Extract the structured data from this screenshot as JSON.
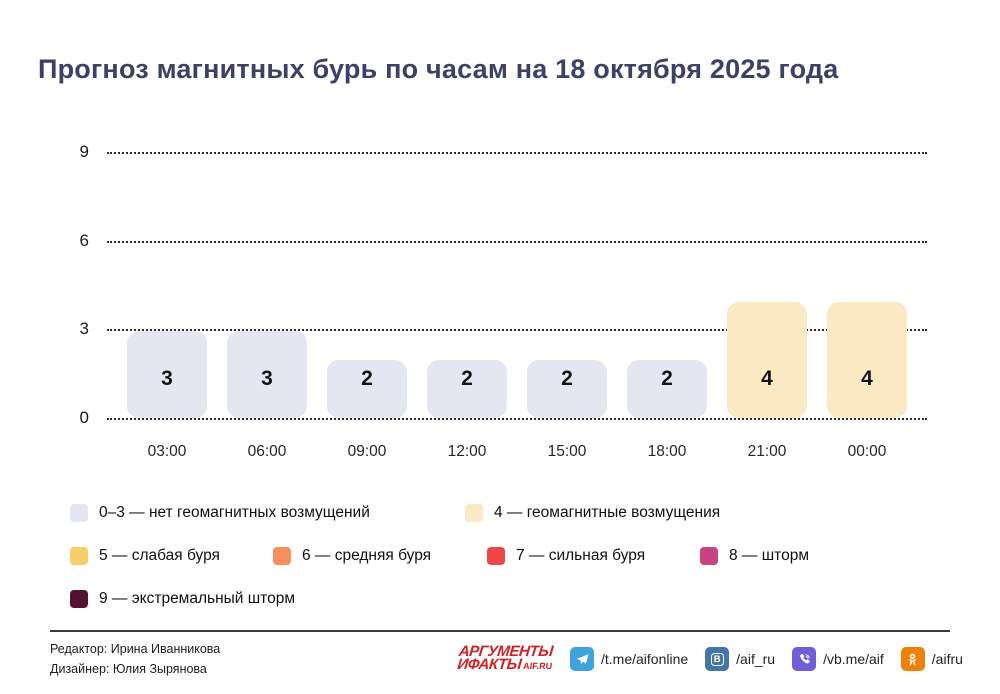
{
  "title": "Прогноз магнитных бурь по часам на 18 октября 2025 года",
  "chart_data": {
    "type": "bar",
    "categories": [
      "03:00",
      "06:00",
      "09:00",
      "12:00",
      "15:00",
      "18:00",
      "21:00",
      "00:00"
    ],
    "values": [
      3,
      3,
      2,
      2,
      2,
      2,
      4,
      4
    ],
    "title": "Прогноз магнитных бурь по часам на 18 октября 2025 года",
    "xlabel": "",
    "ylabel": "",
    "yticks": [
      "0",
      "3",
      "6",
      "9"
    ],
    "ylim": [
      0,
      9
    ],
    "grid": "horizontal-dotted",
    "bar_color_low": "#e4e7f1",
    "bar_color_high": "#fbe9c4",
    "legend_position": "bottom"
  },
  "legend": {
    "items": [
      {
        "color": "#e4e7f1",
        "label": "0–3 — нет геомагнитных возмущений"
      },
      {
        "color": "#fbe9c4",
        "label": "4 — геомагнитные возмущения"
      },
      {
        "color": "#f8ce68",
        "label": "5 — слабая буря"
      },
      {
        "color": "#f88e5e",
        "label": "6 — средняя буря"
      },
      {
        "color": "#ee4647",
        "label": "7 — сильная буря"
      },
      {
        "color": "#c64480",
        "label": "8 — шторм"
      },
      {
        "color": "#541231",
        "label": "9 — экстремальный шторм"
      }
    ]
  },
  "footer": {
    "credits": {
      "editor": "Редактор: Ирина Иванникова",
      "designer": "Дизайнер: Юлия Зырянова"
    },
    "brand": {
      "line1": "АРГУМЕНТЫ",
      "line2": "ИФАКТЫ",
      "suffix": "AIF.RU",
      "color": "#cf2027"
    },
    "social": [
      {
        "icon": "telegram-icon",
        "color": "#3ea2dc",
        "label": "/t.me/aifonline"
      },
      {
        "icon": "vk-icon",
        "color": "#4376a6",
        "label": "/aif_ru"
      },
      {
        "icon": "viber-icon",
        "color": "#6f5ed7",
        "label": "/vb.me/aif"
      },
      {
        "icon": "ok-icon",
        "color": "#ee8208",
        "label": "/aifru"
      }
    ]
  }
}
